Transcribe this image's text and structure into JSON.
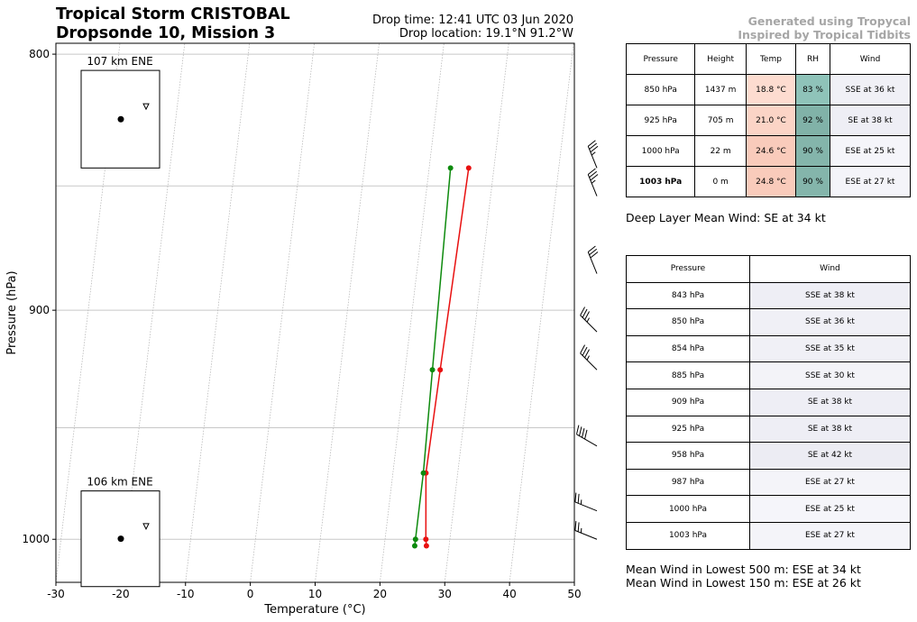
{
  "header": {
    "title_line1": "Tropical Storm CRISTOBAL",
    "title_line2": "Dropsonde 10, Mission 3",
    "drop_time": "Drop time: 12:41 UTC 03 Jun 2020",
    "drop_location": "Drop location: 19.1°N 91.2°W",
    "credit_line1": "Generated using Tropycal",
    "credit_line2": "Inspired by Tropical Tidbits"
  },
  "chart_data": {
    "type": "line",
    "subtype": "skew-t",
    "xlabel": "Temperature (°C)",
    "ylabel": "Pressure (hPa)",
    "xlim": [
      -30,
      50
    ],
    "ylim": [
      1020,
      796
    ],
    "yscale": "log",
    "xticks": [
      "-30",
      "-20",
      "-10",
      "0",
      "10",
      "20",
      "30",
      "40",
      "50"
    ],
    "yticks": [
      "800",
      "900",
      "1000"
    ],
    "grid": true,
    "series": [
      {
        "color": "#e81010",
        "points": [
          {
            "p": 843,
            "t": 26.1
          },
          {
            "p": 925,
            "t": 25.4
          },
          {
            "p": 970,
            "t": 25.1
          },
          {
            "p": 1000,
            "t": 26.3
          },
          {
            "p": 1003,
            "t": 26.5
          }
        ]
      },
      {
        "color": "#0d8a0d",
        "points": [
          {
            "p": 843,
            "t": 23.3
          },
          {
            "p": 925,
            "t": 24.2
          },
          {
            "p": 970,
            "t": 24.7
          },
          {
            "p": 1000,
            "t": 24.7
          },
          {
            "p": 1003,
            "t": 24.7
          }
        ]
      }
    ],
    "inset_maps": [
      {
        "label": "107 km ENE",
        "p_range": [
          806,
          843
        ]
      },
      {
        "label": "106 km ENE",
        "p_range": [
          978,
          1022
        ]
      }
    ],
    "wind_barbs": [
      {
        "p": 843,
        "dir": 158,
        "kt": 38
      },
      {
        "p": 854,
        "dir": 158,
        "kt": 35
      },
      {
        "p": 885,
        "dir": 158,
        "kt": 30
      },
      {
        "p": 909,
        "dir": 135,
        "kt": 38
      },
      {
        "p": 925,
        "dir": 135,
        "kt": 38
      },
      {
        "p": 958,
        "dir": 120,
        "kt": 42
      },
      {
        "p": 987,
        "dir": 112,
        "kt": 27
      },
      {
        "p": 1000,
        "dir": 112,
        "kt": 25
      }
    ]
  },
  "table_levels": {
    "headers": [
      "Pressure",
      "Height",
      "Temp",
      "RH",
      "Wind"
    ],
    "rows": [
      {
        "pressure": "850 hPa",
        "height": "1437 m",
        "temp": "18.8 °C",
        "rh": "83 %",
        "wind": "SSE at 36 kt",
        "temp_color": "#fddcd0",
        "rh_color": "#8fc3b9",
        "wind_color": "#f0f0f6",
        "bold": false
      },
      {
        "pressure": "925 hPa",
        "height": "705 m",
        "temp": "21.0 °C",
        "rh": "92 %",
        "wind": "SE at 38 kt",
        "temp_color": "#fbd4c6",
        "rh_color": "#81b2a8",
        "wind_color": "#eeeef5",
        "bold": false
      },
      {
        "pressure": "1000 hPa",
        "height": "22 m",
        "temp": "24.6 °C",
        "rh": "90 %",
        "wind": "ESE at 25 kt",
        "temp_color": "#f9cbbb",
        "rh_color": "#84b5ab",
        "wind_color": "#f5f5fa",
        "bold": false
      },
      {
        "pressure": "1003 hPa",
        "height": "0 m",
        "temp": "24.8 °C",
        "rh": "90 %",
        "wind": "ESE at 27 kt",
        "temp_color": "#f9cbbb",
        "rh_color": "#84b5ab",
        "wind_color": "#f4f4f9",
        "bold": true
      }
    ]
  },
  "deep_layer_text": "Deep Layer Mean Wind: SE at 34 kt",
  "table_winds": {
    "headers": [
      "Pressure",
      "Wind"
    ],
    "rows": [
      {
        "pressure": "843 hPa",
        "wind": "SSE at 38 kt",
        "color": "#eeeef5"
      },
      {
        "pressure": "850 hPa",
        "wind": "SSE at 36 kt",
        "color": "#f0f0f6"
      },
      {
        "pressure": "854 hPa",
        "wind": "SSE at 35 kt",
        "color": "#f0f0f6"
      },
      {
        "pressure": "885 hPa",
        "wind": "SSE at 30 kt",
        "color": "#f3f3f8"
      },
      {
        "pressure": "909 hPa",
        "wind": "SE at 38 kt",
        "color": "#eeeef5"
      },
      {
        "pressure": "925 hPa",
        "wind": "SE at 38 kt",
        "color": "#eeeef5"
      },
      {
        "pressure": "958 hPa",
        "wind": "SE at 42 kt",
        "color": "#ececf3"
      },
      {
        "pressure": "987 hPa",
        "wind": "ESE at 27 kt",
        "color": "#f4f4f9"
      },
      {
        "pressure": "1000 hPa",
        "wind": "ESE at 25 kt",
        "color": "#f5f5fa"
      },
      {
        "pressure": "1003 hPa",
        "wind": "ESE at 27 kt",
        "color": "#f4f4f9"
      }
    ]
  },
  "mean_wind_500": "Mean Wind in Lowest 500 m: ESE at 34 kt",
  "mean_wind_150": "Mean Wind in Lowest 150 m: ESE at 26 kt"
}
